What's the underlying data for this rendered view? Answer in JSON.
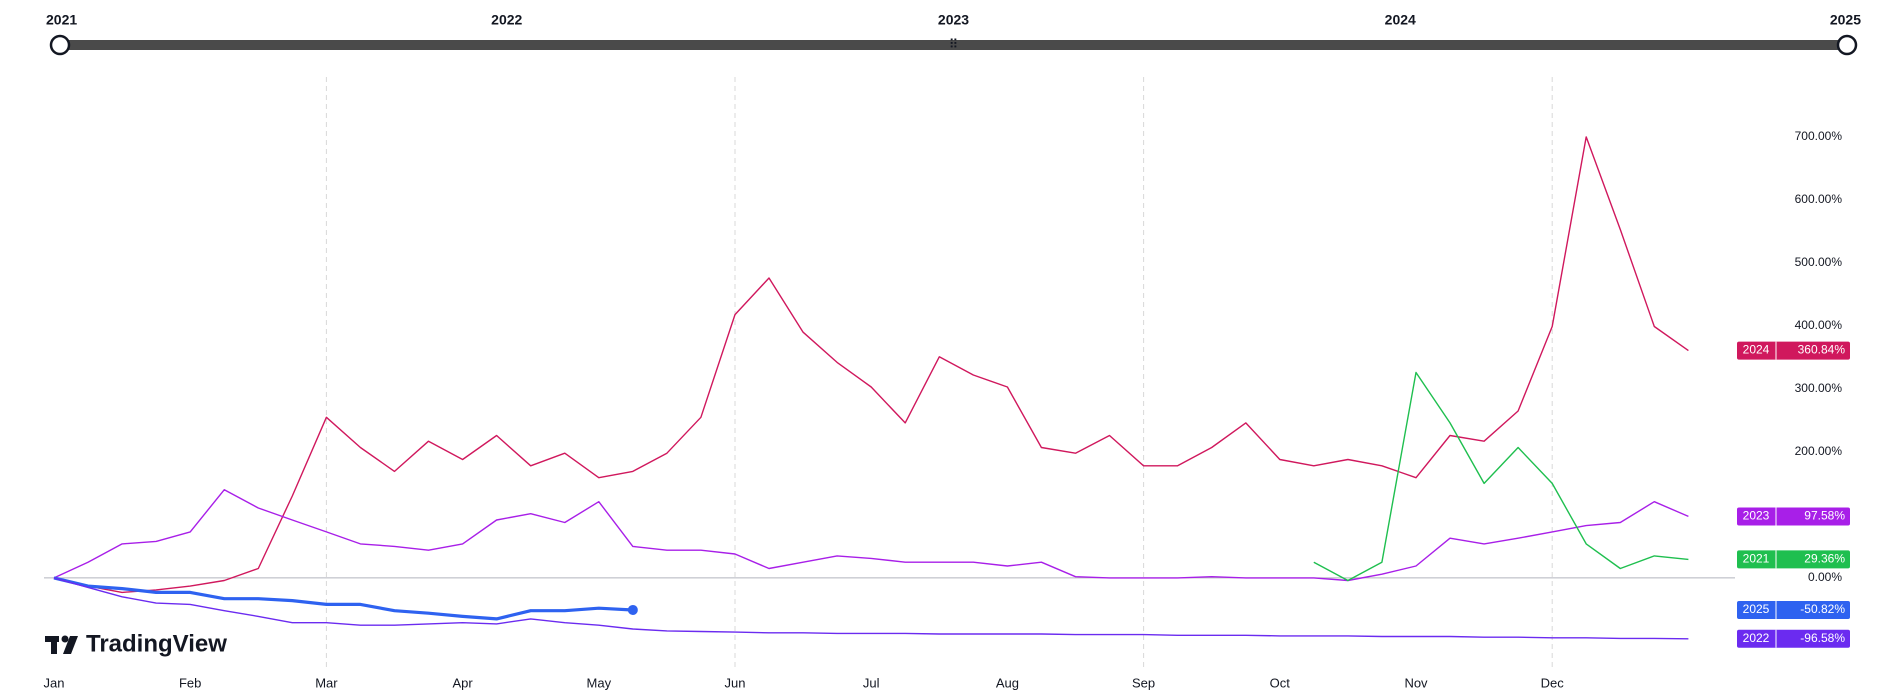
{
  "range_selector": {
    "labels": [
      "2021",
      "2022",
      "2023",
      "2024",
      "2025"
    ]
  },
  "brand": "TradingView",
  "chart_data": {
    "type": "line",
    "categories": [
      "Jan",
      null,
      null,
      null,
      "Feb",
      null,
      null,
      null,
      "Mar",
      null,
      null,
      null,
      "Apr",
      null,
      null,
      null,
      "May",
      null,
      null,
      null,
      "Jun",
      null,
      null,
      null,
      "Jul",
      null,
      null,
      null,
      "Aug",
      null,
      null,
      null,
      "Sep",
      null,
      null,
      null,
      "Oct",
      null,
      null,
      null,
      "Nov",
      null,
      null,
      null,
      "Dec",
      null,
      null,
      null,
      null
    ],
    "ylim": [
      -135,
      795
    ],
    "yticks": [
      {
        "value": 0,
        "label": "0.00%"
      },
      {
        "value": 200,
        "label": "200.00%"
      },
      {
        "value": 300,
        "label": "300.00%"
      },
      {
        "value": 400,
        "label": "400.00%"
      },
      {
        "value": 500,
        "label": "500.00%"
      },
      {
        "value": 600,
        "label": "600.00%"
      },
      {
        "value": 700,
        "label": "700.00%"
      }
    ],
    "series": [
      {
        "name": "2024",
        "color": "#d0185d",
        "values": [
          0,
          -13,
          -23,
          -19,
          -13,
          -4,
          15,
          130,
          255,
          207,
          169,
          217,
          188,
          226,
          178,
          198,
          159,
          169,
          198,
          255,
          418,
          476,
          390,
          342,
          303,
          246,
          351,
          322,
          303,
          207,
          198,
          226,
          178,
          178,
          207,
          246,
          188,
          178,
          188,
          178,
          159,
          226,
          217,
          265,
          399,
          700,
          553,
          399,
          360.84
        ],
        "value_labels": [
          null,
          null,
          null,
          null,
          null,
          null,
          null,
          null,
          null,
          null,
          null,
          null,
          null,
          null,
          null,
          null,
          null,
          null,
          null,
          null,
          null,
          null,
          null,
          null,
          null,
          null,
          null,
          null,
          null,
          null,
          null,
          null,
          null,
          null,
          null,
          null,
          null,
          null,
          null,
          null,
          null,
          null,
          null,
          null,
          null,
          null,
          null,
          null,
          "360.84%"
        ]
      },
      {
        "name": "2023",
        "color": "#a81fe8",
        "values": [
          0,
          25,
          54,
          58,
          73,
          140,
          111,
          92,
          73,
          54,
          50,
          44,
          54,
          92,
          102,
          88,
          121,
          50,
          44,
          44,
          38,
          15,
          25,
          35,
          31,
          25,
          25,
          25,
          19,
          25,
          2,
          0,
          0,
          0,
          2,
          0,
          0,
          0,
          -4,
          6,
          19,
          63,
          54,
          63,
          73,
          83,
          88,
          121,
          97.58
        ],
        "value_labels": [
          null,
          null,
          null,
          null,
          null,
          null,
          null,
          null,
          null,
          null,
          null,
          null,
          null,
          null,
          null,
          null,
          null,
          null,
          null,
          null,
          null,
          null,
          null,
          null,
          null,
          null,
          null,
          null,
          null,
          null,
          null,
          null,
          null,
          null,
          null,
          null,
          null,
          null,
          null,
          null,
          null,
          null,
          null,
          null,
          null,
          null,
          null,
          null,
          "97.58%"
        ]
      },
      {
        "name": "2021",
        "color": "#1fbf4f",
        "values": [
          null,
          null,
          null,
          null,
          null,
          null,
          null,
          null,
          null,
          null,
          null,
          null,
          null,
          null,
          null,
          null,
          null,
          null,
          null,
          null,
          null,
          null,
          null,
          null,
          null,
          null,
          null,
          null,
          null,
          null,
          null,
          null,
          null,
          null,
          null,
          null,
          null,
          25,
          -4,
          25,
          326,
          246,
          150,
          207,
          150,
          54,
          15,
          35,
          29.36
        ],
        "value_labels": [
          null,
          null,
          null,
          null,
          null,
          null,
          null,
          null,
          null,
          null,
          null,
          null,
          null,
          null,
          null,
          null,
          null,
          null,
          null,
          null,
          null,
          null,
          null,
          null,
          null,
          null,
          null,
          null,
          null,
          null,
          null,
          null,
          null,
          null,
          null,
          null,
          null,
          null,
          null,
          null,
          null,
          null,
          null,
          null,
          null,
          null,
          null,
          null,
          "29.36%"
        ]
      },
      {
        "name": "2025",
        "color": "#2e62f0",
        "values": [
          0,
          -13,
          -17,
          -23,
          -23,
          -33,
          -33,
          -36,
          -42,
          -42,
          -52,
          -56,
          -61,
          -65,
          -52,
          -52,
          -48,
          -50.82,
          null,
          null,
          null,
          null,
          null,
          null,
          null,
          null,
          null,
          null,
          null,
          null,
          null,
          null,
          null,
          null,
          null,
          null,
          null,
          null,
          null,
          null,
          null,
          null,
          null,
          null,
          null,
          null,
          null,
          null,
          null
        ],
        "value_labels": [
          null,
          null,
          null,
          null,
          null,
          null,
          null,
          null,
          null,
          null,
          null,
          null,
          null,
          null,
          null,
          null,
          null,
          "-50.82%",
          null,
          null,
          null,
          null,
          null,
          null,
          null,
          null,
          null,
          null,
          null,
          null,
          null,
          null,
          null,
          null,
          null,
          null,
          null,
          null,
          null,
          null,
          null,
          null,
          null,
          null,
          null,
          null,
          null,
          null,
          null
        ]
      },
      {
        "name": "2022",
        "color": "#6b2bf0",
        "values": [
          0,
          -15,
          -30,
          -40,
          -42,
          -52,
          -61,
          -71,
          -71,
          -75,
          -75,
          -73,
          -71,
          -73,
          -65,
          -71,
          -75,
          -81,
          -84,
          -85,
          -86,
          -87,
          -87,
          -88,
          -88,
          -88,
          -89,
          -89,
          -89,
          -89,
          -90,
          -90,
          -90,
          -91,
          -91,
          -91,
          -92,
          -92,
          -92,
          -93,
          -93,
          -93,
          -94,
          -94,
          -95,
          -95,
          -96,
          -96,
          -96.58
        ],
        "value_labels": [
          null,
          null,
          null,
          null,
          null,
          null,
          null,
          null,
          null,
          null,
          null,
          null,
          null,
          null,
          null,
          null,
          null,
          null,
          null,
          null,
          null,
          null,
          null,
          null,
          null,
          null,
          null,
          null,
          null,
          null,
          null,
          null,
          null,
          null,
          null,
          null,
          null,
          null,
          null,
          null,
          null,
          null,
          null,
          null,
          null,
          null,
          null,
          null,
          "-96.58%"
        ]
      }
    ]
  }
}
